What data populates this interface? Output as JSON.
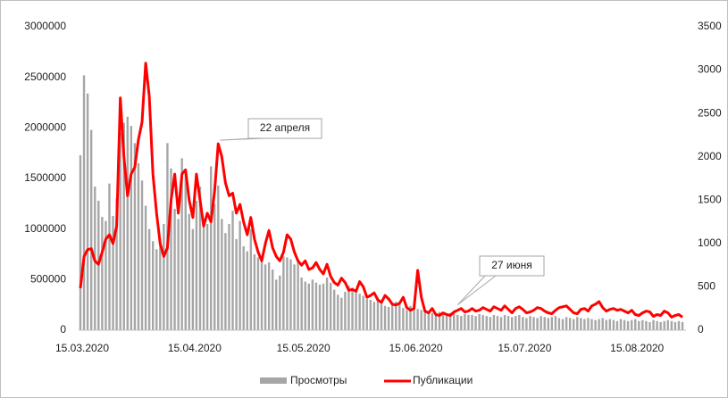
{
  "chart_data": {
    "type": "bar_line",
    "categories": [
      "15.03.2020",
      null,
      null,
      null,
      null,
      null,
      null,
      null,
      null,
      null,
      null,
      null,
      null,
      null,
      null,
      null,
      null,
      null,
      null,
      null,
      null,
      null,
      null,
      null,
      null,
      null,
      null,
      null,
      null,
      null,
      null,
      "15.04.2020",
      null,
      null,
      null,
      null,
      null,
      null,
      null,
      null,
      null,
      null,
      null,
      null,
      null,
      null,
      null,
      null,
      null,
      null,
      null,
      null,
      null,
      null,
      null,
      null,
      null,
      null,
      null,
      null,
      null,
      "15.05.2020",
      null,
      null,
      null,
      null,
      null,
      null,
      null,
      null,
      null,
      null,
      null,
      null,
      null,
      null,
      null,
      null,
      null,
      null,
      null,
      null,
      null,
      null,
      null,
      null,
      null,
      null,
      null,
      null,
      null,
      null,
      "15.06.2020",
      null,
      null,
      null,
      null,
      null,
      null,
      null,
      null,
      null,
      null,
      null,
      null,
      null,
      null,
      null,
      null,
      null,
      null,
      null,
      null,
      null,
      null,
      null,
      null,
      null,
      null,
      null,
      null,
      null,
      "15.07.2020",
      null,
      null,
      null,
      null,
      null,
      null,
      null,
      null,
      null,
      null,
      null,
      null,
      null,
      null,
      null,
      null,
      null,
      null,
      null,
      null,
      null,
      null,
      null,
      null,
      null,
      null,
      null,
      null,
      null,
      null,
      "15.08.2020",
      null,
      null,
      null,
      null,
      null,
      null,
      null,
      null,
      null,
      null,
      null,
      null,
      null
    ],
    "series": [
      {
        "name": "Просмотры",
        "color": "#a6a6a6",
        "values": [
          1730000,
          2520000,
          2340000,
          1980000,
          1420000,
          1280000,
          1120000,
          1080000,
          1450000,
          1130000,
          1300000,
          1950000,
          2050000,
          2110000,
          2020000,
          1850000,
          1650000,
          1480000,
          1230000,
          1000000,
          880000,
          800000,
          900000,
          1050000,
          1850000,
          1600000,
          1200000,
          1100000,
          1700000,
          1550000,
          1150000,
          1000000,
          1280000,
          1420000,
          1100000,
          1050000,
          1620000,
          1250000,
          1430000,
          1100000,
          960000,
          1050000,
          1180000,
          900000,
          1080000,
          830000,
          780000,
          1000000,
          750000,
          720000,
          690000,
          650000,
          670000,
          600000,
          500000,
          540000,
          730000,
          720000,
          700000,
          650000,
          700000,
          520000,
          480000,
          460000,
          500000,
          470000,
          450000,
          460000,
          520000,
          470000,
          400000,
          350000,
          320000,
          380000,
          440000,
          420000,
          400000,
          360000,
          340000,
          310000,
          300000,
          280000,
          320000,
          260000,
          240000,
          230000,
          250000,
          280000,
          260000,
          220000,
          200000,
          240000,
          260000,
          210000,
          200000,
          180000,
          190000,
          170000,
          160000,
          180000,
          170000,
          160000,
          170000,
          180000,
          150000,
          140000,
          160000,
          150000,
          150000,
          140000,
          160000,
          150000,
          140000,
          130000,
          150000,
          140000,
          130000,
          150000,
          140000,
          130000,
          140000,
          150000,
          130000,
          120000,
          140000,
          130000,
          120000,
          140000,
          130000,
          120000,
          130000,
          140000,
          120000,
          110000,
          130000,
          120000,
          110000,
          130000,
          120000,
          110000,
          120000,
          110000,
          100000,
          110000,
          120000,
          100000,
          110000,
          100000,
          90000,
          110000,
          100000,
          90000,
          100000,
          110000,
          90000,
          100000,
          90000,
          80000,
          100000,
          90000,
          80000,
          90000,
          100000,
          90000,
          80000,
          90000,
          80000
        ]
      },
      {
        "name": "Публикации",
        "color": "#ff0000",
        "axis": "y2",
        "values": [
          484,
          850,
          930,
          940,
          800,
          760,
          900,
          1050,
          1100,
          1000,
          1200,
          2680,
          2000,
          1550,
          1800,
          1880,
          2200,
          2400,
          3080,
          2700,
          1800,
          1350,
          1000,
          850,
          950,
          1500,
          1800,
          1350,
          1800,
          1850,
          1500,
          1300,
          1800,
          1500,
          1200,
          1350,
          1250,
          1600,
          2150,
          2000,
          1700,
          1550,
          1580,
          1350,
          1450,
          1250,
          1100,
          1300,
          1050,
          900,
          800,
          1000,
          1150,
          950,
          850,
          800,
          900,
          1100,
          1050,
          900,
          800,
          750,
          800,
          700,
          720,
          780,
          700,
          650,
          760,
          620,
          550,
          520,
          600,
          550,
          460,
          470,
          450,
          560,
          500,
          380,
          400,
          430,
          350,
          320,
          400,
          360,
          300,
          290,
          310,
          380,
          260,
          230,
          250,
          690,
          380,
          220,
          200,
          250,
          180,
          170,
          200,
          180,
          170,
          210,
          230,
          250,
          210,
          220,
          250,
          220,
          230,
          260,
          240,
          220,
          270,
          250,
          230,
          280,
          240,
          200,
          250,
          270,
          240,
          200,
          210,
          230,
          260,
          250,
          220,
          200,
          190,
          230,
          260,
          270,
          280,
          240,
          200,
          190,
          240,
          250,
          220,
          280,
          300,
          330,
          260,
          220,
          240,
          250,
          230,
          240,
          220,
          200,
          230,
          180,
          170,
          200,
          220,
          210,
          160,
          180,
          170,
          220,
          200,
          150,
          170,
          180,
          150
        ]
      }
    ],
    "ylim": [
      0,
      3000000
    ],
    "yticks": [
      0,
      500000,
      1000000,
      1500000,
      2000000,
      2500000,
      3000000
    ],
    "y2lim": [
      0,
      3500
    ],
    "y2ticks": [
      0,
      500,
      1000,
      1500,
      2000,
      2500,
      3000,
      3500
    ],
    "annotations": [
      "22 апреля",
      "27 июня"
    ],
    "legend": "bottom"
  }
}
